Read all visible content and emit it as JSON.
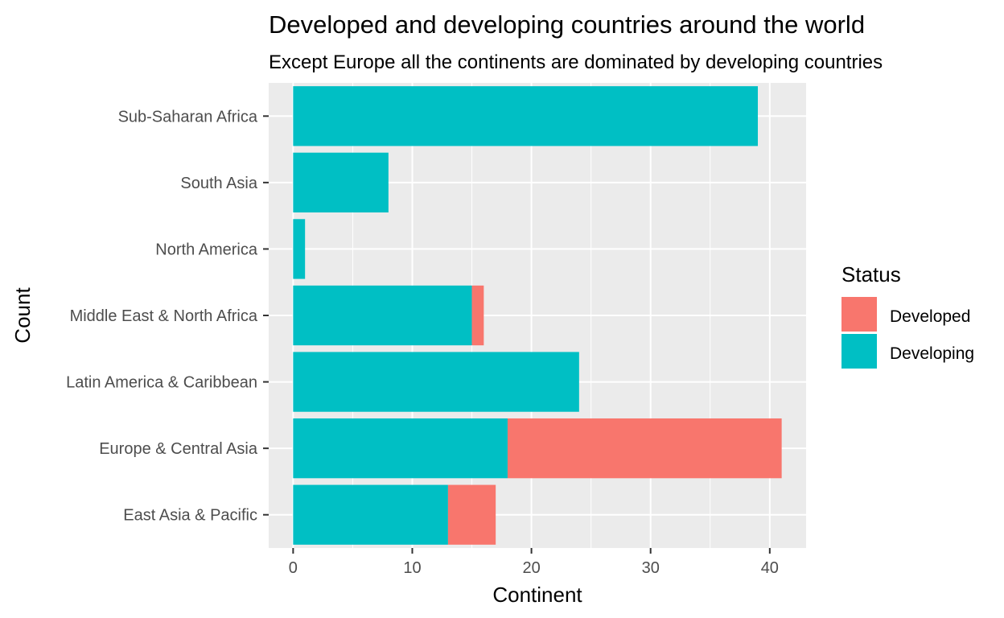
{
  "chart_data": {
    "type": "bar",
    "orientation": "horizontal",
    "stacked": true,
    "title": "Developed and developing countries around the world",
    "subtitle": "Except Europe all the continents are dominated by developing countries",
    "xlabel": "Continent",
    "ylabel": "Count",
    "categories": [
      "East Asia & Pacific",
      "Europe & Central Asia",
      "Latin America & Caribbean",
      "Middle East & North Africa",
      "North America",
      "South Asia",
      "Sub-Saharan Africa"
    ],
    "series": [
      {
        "name": "Developing",
        "color": "#00BFC4",
        "values": [
          13,
          18,
          24,
          15,
          1,
          8,
          39
        ]
      },
      {
        "name": "Developed",
        "color": "#F8766D",
        "values": [
          4,
          23,
          0,
          1,
          0,
          0,
          0
        ]
      }
    ],
    "xlim": [
      -2.05,
      43.05
    ],
    "xticks": [
      0,
      10,
      20,
      30,
      40
    ],
    "grid": true,
    "legend": {
      "title": "Status",
      "placement": "right",
      "entries": [
        {
          "label": "Developed",
          "color": "#F8766D"
        },
        {
          "label": "Developing",
          "color": "#00BFC4"
        }
      ]
    }
  }
}
